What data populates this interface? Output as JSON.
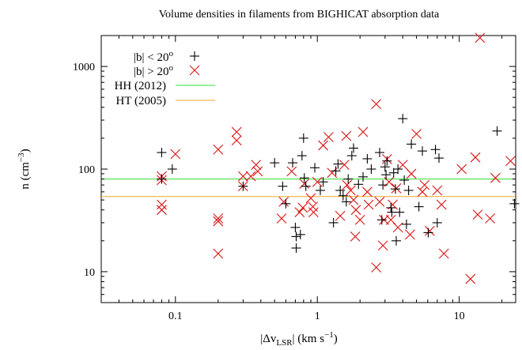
{
  "chart_data": {
    "type": "scatter",
    "title": "Volume densities in filaments from BIGHICAT absorption data",
    "xlabel": {
      "pre": "|Δv",
      "sub": "LSR",
      "post": "| (km s",
      "sup": "−1",
      "end": ")"
    },
    "ylabel": {
      "pre": "n (cm",
      "sup": "−3",
      "end": ")"
    },
    "xscale": "log",
    "yscale": "log",
    "xlim": [
      0.03,
      25
    ],
    "ylim": [
      5,
      2000
    ],
    "x_ticks": [
      0.1,
      1,
      10
    ],
    "x_tick_labels": [
      "0.1",
      "1",
      "10"
    ],
    "y_ticks": [
      10,
      100,
      1000
    ],
    "y_tick_labels": [
      "10",
      "100",
      "1000"
    ],
    "legend_position": "top-left",
    "grid": false,
    "series": [
      {
        "name": "|b| < 20°",
        "label": {
          "text": "|b| < 20",
          "sup": "o"
        },
        "marker": "plus",
        "color": "#000000",
        "points": [
          [
            0.08,
            145
          ],
          [
            0.08,
            80
          ],
          [
            0.095,
            100
          ],
          [
            0.3,
            68
          ],
          [
            0.5,
            115
          ],
          [
            0.57,
            68
          ],
          [
            0.6,
            46
          ],
          [
            0.67,
            115
          ],
          [
            0.7,
            27
          ],
          [
            0.71,
            22
          ],
          [
            0.71,
            17
          ],
          [
            0.76,
            23
          ],
          [
            0.78,
            135
          ],
          [
            0.8,
            200
          ],
          [
            0.81,
            82
          ],
          [
            0.83,
            68
          ],
          [
            0.96,
            103
          ],
          [
            1.05,
            62
          ],
          [
            1.1,
            75
          ],
          [
            1.3,
            30
          ],
          [
            1.35,
            96
          ],
          [
            1.4,
            112
          ],
          [
            1.45,
            62
          ],
          [
            1.52,
            55
          ],
          [
            1.6,
            48
          ],
          [
            1.65,
            80
          ],
          [
            1.75,
            135
          ],
          [
            1.8,
            160
          ],
          [
            1.95,
            71
          ],
          [
            2.1,
            84
          ],
          [
            2.25,
            126
          ],
          [
            2.4,
            100
          ],
          [
            2.75,
            145
          ],
          [
            2.85,
            32
          ],
          [
            2.9,
            70
          ],
          [
            3.0,
            105
          ],
          [
            3.05,
            88
          ],
          [
            3.1,
            120
          ],
          [
            3.3,
            42
          ],
          [
            3.35,
            38
          ],
          [
            3.45,
            92
          ],
          [
            3.55,
            64
          ],
          [
            3.6,
            20
          ],
          [
            3.7,
            100
          ],
          [
            3.8,
            38
          ],
          [
            4.0,
            310
          ],
          [
            4.1,
            78
          ],
          [
            4.25,
            29
          ],
          [
            4.4,
            62
          ],
          [
            4.6,
            175
          ],
          [
            5.2,
            43
          ],
          [
            5.5,
            150
          ],
          [
            6.05,
            24
          ],
          [
            6.8,
            155
          ],
          [
            7.2,
            128
          ],
          [
            7.0,
            30
          ],
          [
            18.5,
            235
          ],
          [
            24.5,
            46
          ]
        ]
      },
      {
        "name": "|b| > 20°",
        "label": {
          "text": "|b| > 20",
          "sup": "o"
        },
        "marker": "x",
        "color": "#dd1111",
        "points": [
          [
            0.08,
            45
          ],
          [
            0.08,
            40
          ],
          [
            0.08,
            78
          ],
          [
            0.08,
            85
          ],
          [
            0.1,
            140
          ],
          [
            0.2,
            155
          ],
          [
            0.2,
            33
          ],
          [
            0.2,
            31
          ],
          [
            0.2,
            15
          ],
          [
            0.27,
            230
          ],
          [
            0.27,
            190
          ],
          [
            0.3,
            85
          ],
          [
            0.3,
            68
          ],
          [
            0.34,
            85
          ],
          [
            0.37,
            110
          ],
          [
            0.38,
            95
          ],
          [
            0.56,
            33
          ],
          [
            0.58,
            48
          ],
          [
            0.66,
            95
          ],
          [
            0.75,
            38
          ],
          [
            0.79,
            42
          ],
          [
            0.81,
            72
          ],
          [
            0.9,
            52
          ],
          [
            0.93,
            43
          ],
          [
            0.94,
            38
          ],
          [
            1.0,
            75
          ],
          [
            1.1,
            170
          ],
          [
            1.2,
            205
          ],
          [
            1.27,
            92
          ],
          [
            1.45,
            35
          ],
          [
            1.55,
            110
          ],
          [
            1.6,
            210
          ],
          [
            1.62,
            70
          ],
          [
            1.72,
            62
          ],
          [
            1.8,
            50
          ],
          [
            1.85,
            22
          ],
          [
            1.87,
            40
          ],
          [
            2.0,
            32
          ],
          [
            2.1,
            230
          ],
          [
            2.25,
            60
          ],
          [
            2.3,
            45
          ],
          [
            2.6,
            430
          ],
          [
            2.6,
            11
          ],
          [
            2.75,
            48
          ],
          [
            2.9,
            18
          ],
          [
            2.95,
            32
          ],
          [
            3.1,
            125
          ],
          [
            3.2,
            75
          ],
          [
            3.3,
            32
          ],
          [
            3.4,
            45
          ],
          [
            3.6,
            65
          ],
          [
            3.7,
            27
          ],
          [
            4.0,
            110
          ],
          [
            4.5,
            23
          ],
          [
            4.6,
            90
          ],
          [
            5.0,
            220
          ],
          [
            5.5,
            60
          ],
          [
            5.7,
            70
          ],
          [
            6.2,
            25
          ],
          [
            7.0,
            62
          ],
          [
            7.5,
            45
          ],
          [
            7.8,
            15
          ],
          [
            10.4,
            100
          ],
          [
            12.0,
            8.5
          ],
          [
            13.0,
            130
          ],
          [
            13.5,
            36
          ],
          [
            14.0,
            1900
          ],
          [
            16.5,
            33
          ],
          [
            18.0,
            82
          ],
          [
            23.0,
            120
          ]
        ]
      }
    ],
    "reference_lines": [
      {
        "name": "HH (2012)",
        "value": 80,
        "color": "#33dd33"
      },
      {
        "name": "HT (2005)",
        "value": 54,
        "color": "#eea928"
      }
    ]
  }
}
